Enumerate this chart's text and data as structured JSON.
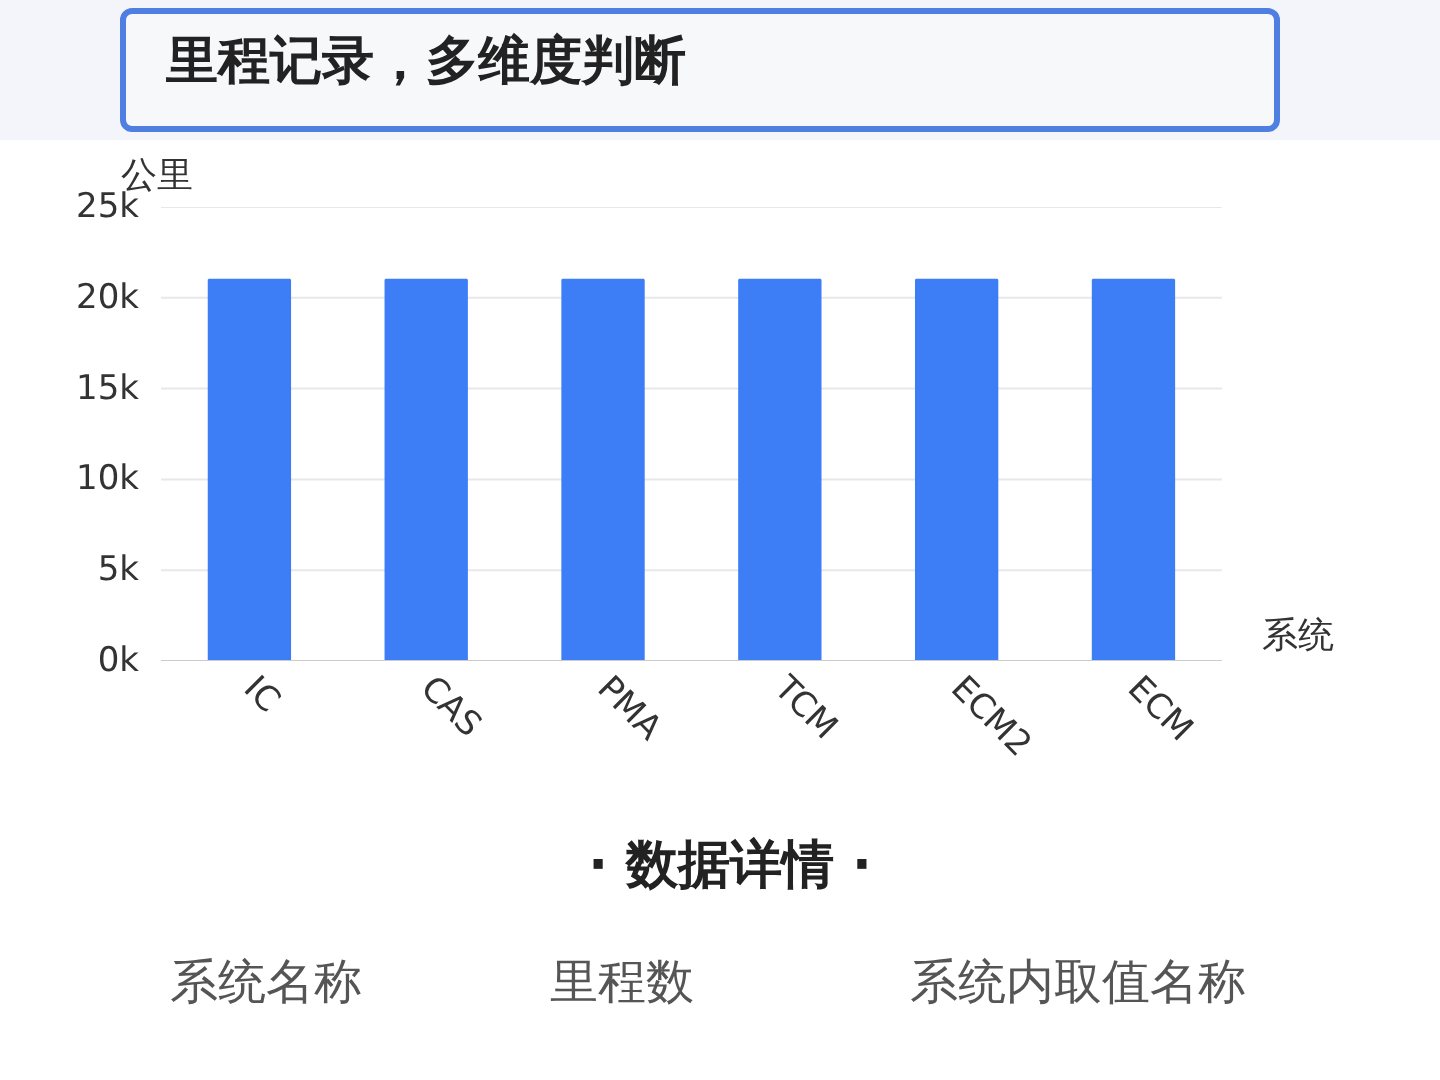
{
  "chart_data": {
    "type": "bar",
    "title": "里程记录，多维度判断",
    "ylabel": "公里",
    "xlabel": "系统",
    "categories": [
      "IC",
      "CAS",
      "PMA",
      "TCM",
      "ECM2",
      "ECM"
    ],
    "values": [
      21000,
      21000,
      21000,
      21000,
      21000,
      21000
    ],
    "color": "#3d7ef7",
    "ylim": [
      0,
      25000
    ],
    "yticks": [
      {
        "value": 0,
        "label": "0k"
      },
      {
        "value": 5000,
        "label": "5k"
      },
      {
        "value": 10000,
        "label": "10k"
      },
      {
        "value": 15000,
        "label": "15k"
      },
      {
        "value": 20000,
        "label": "20k"
      },
      {
        "value": 25000,
        "label": "25k"
      }
    ],
    "grid": "y",
    "annotations": [
      "· 数据详情 ·",
      "系统名称",
      "里程数",
      "系统内取值名称"
    ]
  }
}
